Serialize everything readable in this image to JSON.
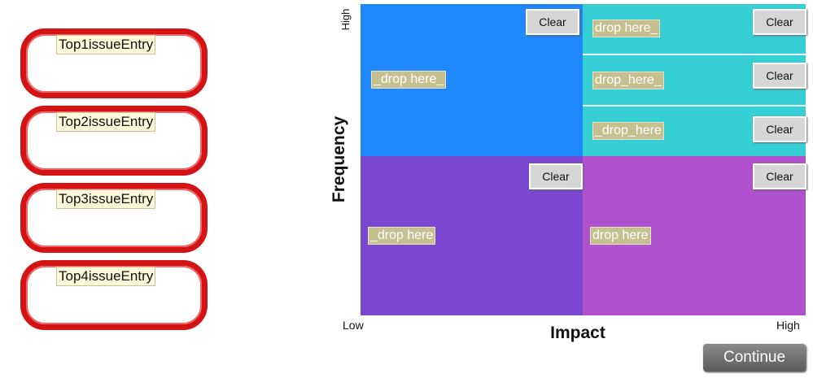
{
  "issues": [
    "Top1issueEntry",
    "Top2issueEntry",
    "Top3issueEntry",
    "Top4issueEntry"
  ],
  "matrix": {
    "y_axis": {
      "label": "Frequency",
      "high": "High"
    },
    "x_axis": {
      "label": "Impact",
      "low": "Low",
      "high": "High"
    },
    "zones": [
      {
        "drop": "_drop here_",
        "button": "Clear"
      },
      {
        "drop": "drop here_",
        "button": "Clear"
      },
      {
        "drop": "drop_here_",
        "button": "Clear"
      },
      {
        "drop": "_drop_here",
        "button": "Clear"
      },
      {
        "drop": "_drop here",
        "button": "Clear"
      },
      {
        "drop": "drop here",
        "button": "Clear"
      }
    ]
  },
  "continue": "Continue"
}
